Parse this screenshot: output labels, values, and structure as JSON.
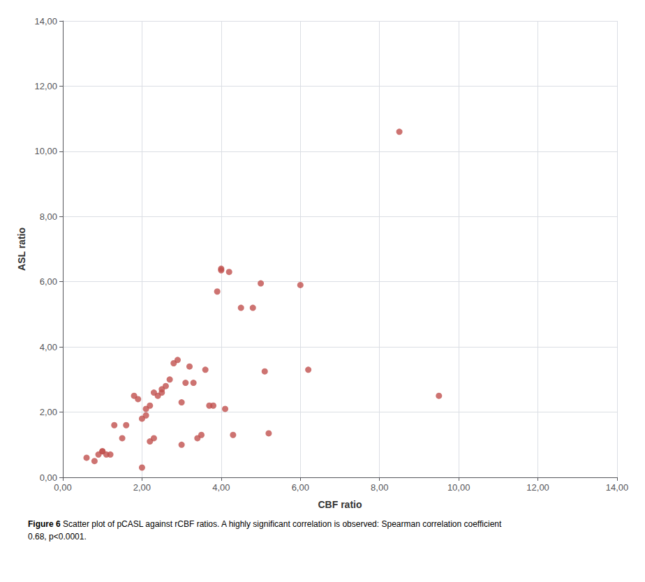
{
  "chart_data": {
    "type": "scatter",
    "x": [
      0.6,
      0.8,
      0.9,
      1.0,
      1.0,
      1.1,
      1.2,
      1.3,
      1.5,
      1.6,
      1.8,
      1.9,
      2.0,
      2.0,
      2.1,
      2.1,
      2.2,
      2.2,
      2.3,
      2.3,
      2.4,
      2.5,
      2.5,
      2.6,
      2.7,
      2.8,
      2.9,
      3.0,
      3.0,
      3.1,
      3.2,
      3.3,
      3.4,
      3.5,
      3.6,
      3.7,
      3.8,
      3.9,
      4.0,
      4.0,
      4.1,
      4.2,
      4.3,
      4.5,
      4.8,
      5.0,
      5.1,
      5.2,
      6.0,
      6.2,
      8.5,
      9.5
    ],
    "values": [
      0.6,
      0.5,
      0.7,
      0.8,
      0.8,
      0.7,
      0.7,
      1.6,
      1.2,
      1.6,
      2.5,
      2.4,
      1.8,
      0.3,
      1.9,
      2.1,
      1.1,
      2.2,
      1.2,
      2.6,
      2.5,
      2.7,
      2.6,
      2.8,
      3.0,
      3.5,
      3.6,
      1.0,
      2.3,
      2.9,
      3.4,
      2.9,
      1.2,
      1.3,
      3.3,
      2.2,
      2.2,
      5.7,
      6.4,
      6.35,
      2.1,
      6.3,
      1.3,
      5.2,
      5.2,
      5.95,
      3.25,
      1.35,
      5.9,
      3.3,
      10.6,
      2.5
    ],
    "color": "#c0504d",
    "marker": "circle",
    "xlabel": "CBF ratio",
    "ylabel": "ASL ratio",
    "xlim": [
      0,
      14
    ],
    "ylim": [
      0,
      14
    ],
    "xticks": [
      {
        "value": 0,
        "label": "0,00"
      },
      {
        "value": 2,
        "label": "2,00"
      },
      {
        "value": 4,
        "label": "4,00"
      },
      {
        "value": 6,
        "label": "6,00"
      },
      {
        "value": 8,
        "label": "8,00"
      },
      {
        "value": 10,
        "label": "10,00"
      },
      {
        "value": 12,
        "label": "12,00"
      },
      {
        "value": 14,
        "label": "14,00"
      }
    ],
    "yticks": [
      {
        "value": 0,
        "label": "0,00"
      },
      {
        "value": 2,
        "label": "2,00"
      },
      {
        "value": 4,
        "label": "4,00"
      },
      {
        "value": 6,
        "label": "6,00"
      },
      {
        "value": 8,
        "label": "8,00"
      },
      {
        "value": 10,
        "label": "10,00"
      },
      {
        "value": 12,
        "label": "12,00"
      },
      {
        "value": 14,
        "label": "14,00"
      }
    ],
    "grid": true,
    "annotations": [
      "Figure 6",
      " Scatter plot of pCASL against rCBF ratios. A highly significant correlation is observed: Spearman correlation coefficient\n0.68, p<0.0001."
    ]
  }
}
